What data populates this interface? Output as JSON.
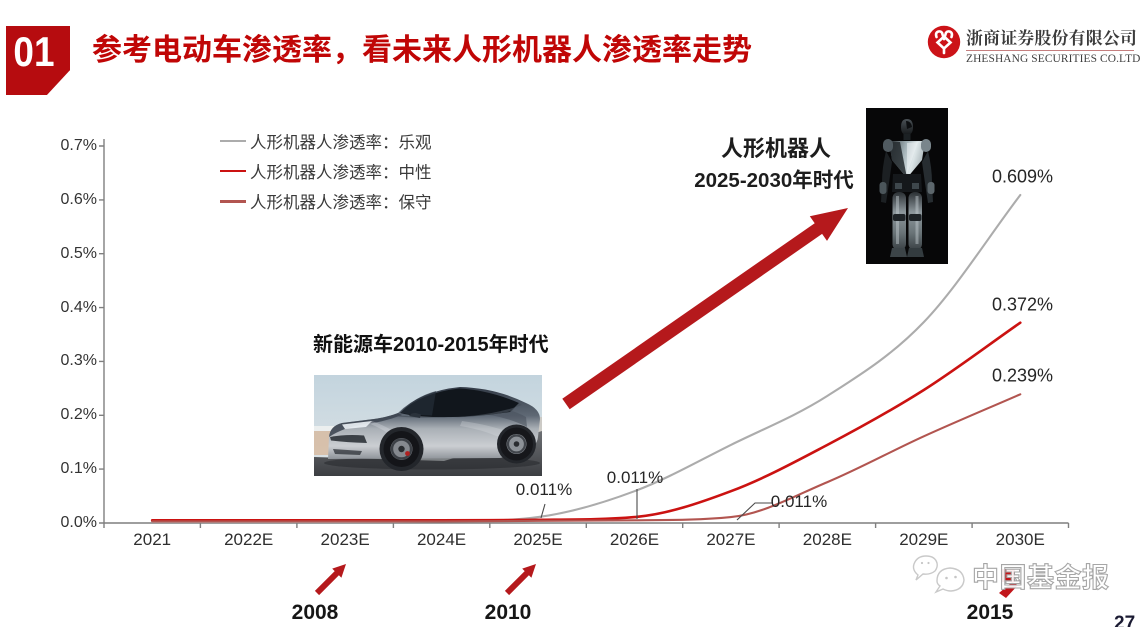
{
  "page": {
    "background": "#FFFFFF",
    "page_number": "27"
  },
  "header": {
    "section_number": "01",
    "title": "参考电动车渗透率，看未来人形机器人渗透率走势",
    "accent_color": "#C00606"
  },
  "brand": {
    "company_cn": "浙商证券股份有限公司",
    "company_en": "ZHESHANG SECURITIES CO.LTD",
    "logo_color": "#CC1318"
  },
  "chart_data": {
    "type": "line",
    "title": "",
    "xlabel": "",
    "ylabel": "",
    "unit": "%",
    "categories": [
      "2021",
      "2022E",
      "2023E",
      "2024E",
      "2025E",
      "2026E",
      "2027E",
      "2028E",
      "2029E",
      "2030E"
    ],
    "y_tick_labels": [
      "0.0%",
      "0.1%",
      "0.2%",
      "0.3%",
      "0.4%",
      "0.5%",
      "0.6%",
      "0.7%"
    ],
    "ylim": [
      0,
      0.7
    ],
    "grid": false,
    "legend_position": "top-left",
    "series": [
      {
        "name": "人形机器人渗透率：乐观",
        "color": "#ACACAC",
        "values": [
          0.002,
          0.002,
          0.002,
          0.003,
          0.011,
          0.059,
          0.145,
          0.236,
          0.373,
          0.609
        ],
        "end_label": "0.609%"
      },
      {
        "name": "人形机器人渗透率：中性",
        "color": "#CB1211",
        "values": [
          0.005,
          0.005,
          0.005,
          0.005,
          0.006,
          0.011,
          0.059,
          0.145,
          0.247,
          0.372
        ],
        "end_label": "0.372%"
      },
      {
        "name": "人形机器人渗透率：保守",
        "color": "#B25550",
        "values": [
          0.003,
          0.003,
          0.003,
          0.003,
          0.004,
          0.005,
          0.011,
          0.076,
          0.161,
          0.239
        ],
        "end_label": "0.239%"
      }
    ],
    "callouts": [
      {
        "label": "0.011%",
        "series_index": 0,
        "category": "2025E"
      },
      {
        "label": "0.011%",
        "series_index": 1,
        "category": "2026E"
      },
      {
        "label": "0.011%",
        "series_index": 2,
        "category": "2027E"
      }
    ]
  },
  "annotations": {
    "robot_era_line1": "人形机器人",
    "robot_era_line2": "2025-2030年时代",
    "robot_image": "humanoid-robot-photo",
    "ev_era_label": "新能源车2010-2015年时代",
    "ev_image": "tesla-model-y-photo",
    "timeline_2008": "2008",
    "timeline_2010": "2010",
    "timeline_2015": "2015"
  },
  "watermark": {
    "text": "中国基金报",
    "icon": "fund-news-bubbles-logo"
  }
}
